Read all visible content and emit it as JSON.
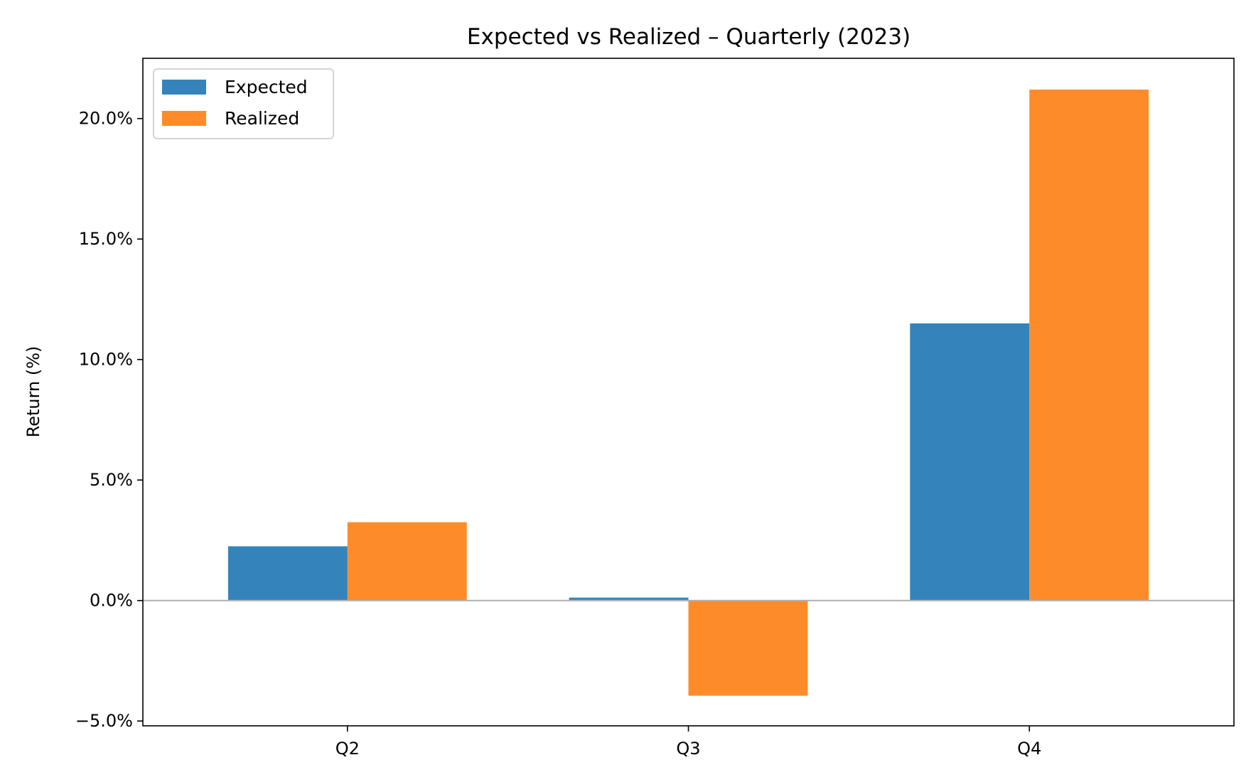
{
  "chart_data": {
    "type": "bar",
    "title": "Expected vs Realized – Quarterly (2023)",
    "xlabel": "",
    "ylabel": "Return (%)",
    "categories": [
      "Q2",
      "Q3",
      "Q4"
    ],
    "series": [
      {
        "name": "Expected",
        "values": [
          2.25,
          0.12,
          11.5
        ],
        "color": "#3583bb"
      },
      {
        "name": "Realized",
        "values": [
          3.25,
          -3.95,
          21.2
        ],
        "color": "#fe8b29"
      }
    ],
    "ylim": [
      -5.2,
      22.5
    ],
    "yticks": [
      -5,
      0,
      5,
      10,
      15,
      20
    ],
    "ytick_labels": [
      "−5.0%",
      "0.0%",
      "5.0%",
      "10.0%",
      "15.0%",
      "20.0%"
    ],
    "grid": false,
    "zero_line": true,
    "legend_position": "top-left"
  }
}
